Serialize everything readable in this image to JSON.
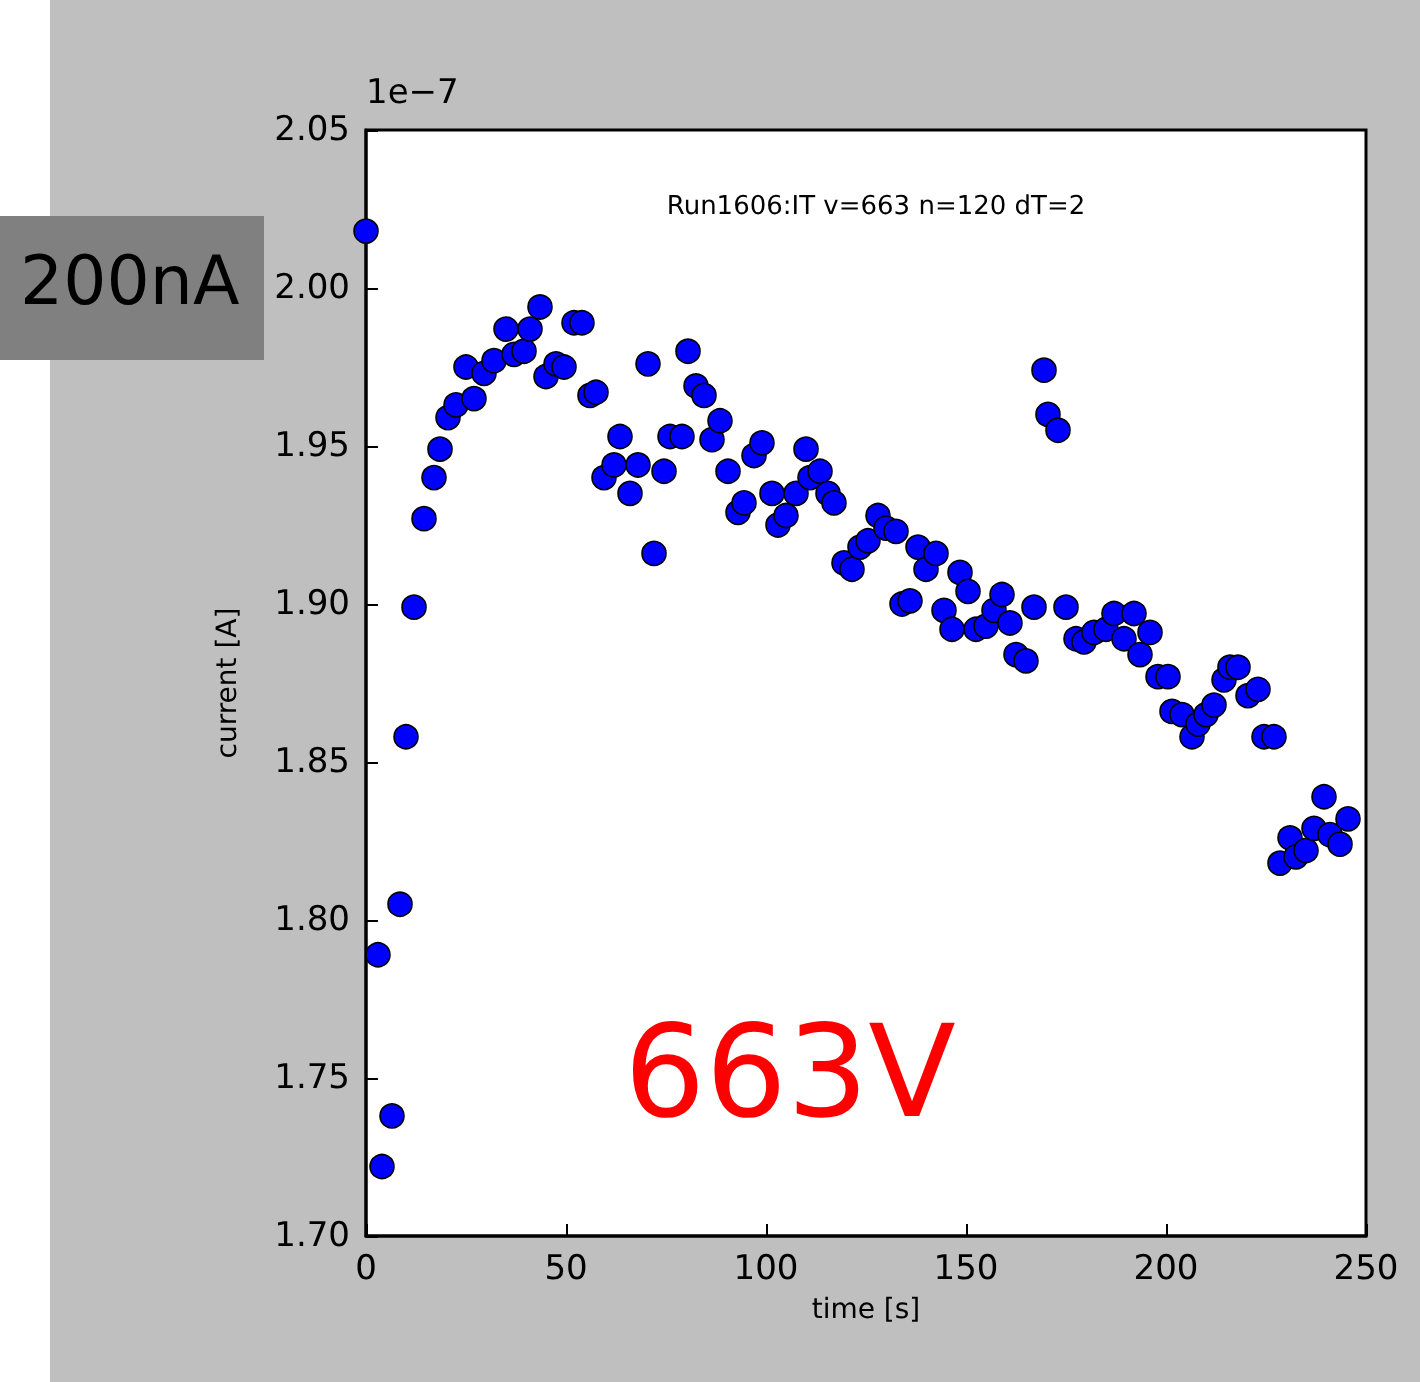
{
  "chart_data": {
    "type": "scatter",
    "title": "Run1606:IT v=663 n=120 dT=2",
    "xlabel": "time [s]",
    "ylabel": "current [A]",
    "annotations": [
      "1e−7",
      "200nA",
      "663V"
    ],
    "series": [
      {
        "color": "#0000ff",
        "x": [
          0,
          3,
          4,
          6.5,
          8.5,
          10,
          12,
          14.5,
          17,
          18.5,
          20.5,
          22.5,
          25,
          27,
          29.5,
          32,
          35,
          37,
          39.5,
          41,
          43.5,
          45,
          47.5,
          49.5,
          52,
          54,
          56,
          57.5,
          59.5,
          62,
          63.5,
          66,
          68,
          70.5,
          72,
          74.5,
          76,
          79,
          80.5,
          82.5,
          84.5,
          86.5,
          88.5,
          90.5,
          93,
          94.5,
          97,
          99,
          101.5,
          103,
          105,
          107.5,
          110,
          111,
          113.5,
          115.5,
          117,
          119.5,
          121.5,
          123.5,
          125.5,
          128,
          130,
          132.5,
          134,
          136,
          138,
          140,
          142.5,
          144.5,
          146.5,
          148.5,
          150.5,
          152.5,
          155,
          157,
          159,
          161,
          162.5,
          165,
          167,
          169.5,
          170.5,
          173,
          175,
          177.5,
          179.5,
          182,
          185,
          187,
          189.5,
          192,
          193.5,
          196,
          198,
          200.5,
          201.5,
          204,
          206.5,
          208,
          210,
          212,
          214.5,
          216,
          218,
          220.5,
          223,
          224.5,
          227,
          228.5,
          231,
          232.5,
          235,
          237,
          239.5,
          241,
          243.5,
          245.5
        ],
        "values": [
          2.018,
          1.789,
          1.722,
          1.738,
          1.805,
          1.858,
          1.899,
          1.927,
          1.94,
          1.949,
          1.959,
          1.963,
          1.975,
          1.965,
          1.973,
          1.977,
          1.987,
          1.979,
          1.98,
          1.987,
          1.994,
          1.972,
          1.976,
          1.975,
          1.989,
          1.989,
          1.966,
          1.967,
          1.94,
          1.944,
          1.953,
          1.935,
          1.944,
          1.976,
          1.916,
          1.942,
          1.953,
          1.953,
          1.98,
          1.969,
          1.966,
          1.952,
          1.958,
          1.942,
          1.929,
          1.932,
          1.947,
          1.951,
          1.935,
          1.925,
          1.928,
          1.935,
          1.949,
          1.94,
          1.942,
          1.935,
          1.932,
          1.913,
          1.911,
          1.918,
          1.92,
          1.928,
          1.924,
          1.923,
          1.9,
          1.901,
          1.918,
          1.911,
          1.916,
          1.898,
          1.892,
          1.91,
          1.904,
          1.892,
          1.893,
          1.898,
          1.903,
          1.894,
          1.884,
          1.882,
          1.899,
          1.974,
          1.96,
          1.955,
          1.899,
          1.889,
          1.888,
          1.891,
          1.892,
          1.897,
          1.889,
          1.897,
          1.884,
          1.891,
          1.877,
          1.877,
          1.866,
          1.865,
          1.858,
          1.862,
          1.865,
          1.868,
          1.876,
          1.88,
          1.88,
          1.871,
          1.873,
          1.858,
          1.858,
          1.818,
          1.826,
          1.82,
          1.822,
          1.829,
          1.839,
          1.827,
          1.824,
          1.832
        ]
      }
    ],
    "marker": "circle",
    "grid": false,
    "xlim": [
      0,
      250
    ],
    "xticks": [
      0,
      50,
      100,
      150,
      200,
      250
    ],
    "ylim": [
      1.7,
      2.05
    ],
    "yticks": [
      {
        "value": 1.7,
        "label": "1.70"
      },
      {
        "value": 1.75,
        "label": "1.75"
      },
      {
        "value": 1.8,
        "label": "1.80"
      },
      {
        "value": 1.85,
        "label": "1.85"
      },
      {
        "value": 1.9,
        "label": "1.90"
      },
      {
        "value": 1.95,
        "label": "1.95"
      },
      {
        "value": 2.0,
        "label": "2.00"
      },
      {
        "value": 2.05,
        "label": "2.05"
      }
    ]
  }
}
